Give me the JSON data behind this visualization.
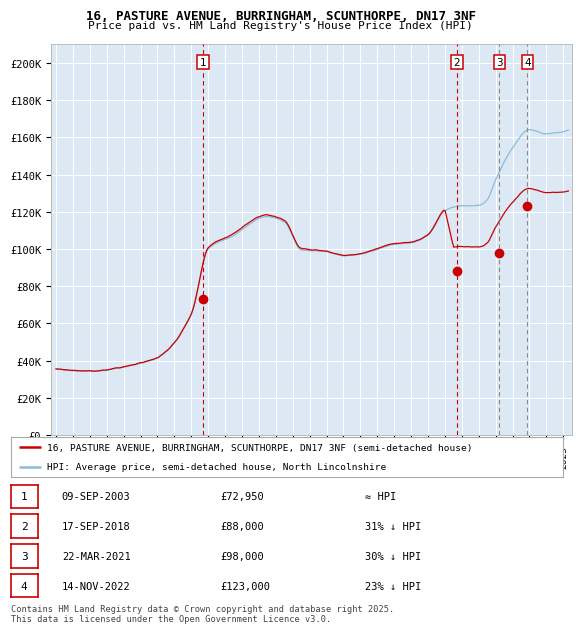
{
  "title1": "16, PASTURE AVENUE, BURRINGHAM, SCUNTHORPE, DN17 3NF",
  "title2": "Price paid vs. HM Land Registry's House Price Index (HPI)",
  "bg_color": "#dce9f5",
  "hpi_color": "#8bbcda",
  "price_color": "#cc0000",
  "ylim": [
    0,
    210000
  ],
  "ytick_values": [
    0,
    20000,
    40000,
    60000,
    80000,
    100000,
    120000,
    140000,
    160000,
    180000,
    200000
  ],
  "ytick_labels": [
    "£0",
    "£20K",
    "£40K",
    "£60K",
    "£80K",
    "£100K",
    "£120K",
    "£140K",
    "£160K",
    "£180K",
    "£200K"
  ],
  "xlim_start": 1994.7,
  "xlim_end": 2025.5,
  "sale_dates": [
    2003.69,
    2018.71,
    2021.22,
    2022.87
  ],
  "sale_prices": [
    72950,
    88000,
    98000,
    123000
  ],
  "sale_labels": [
    "1",
    "2",
    "3",
    "4"
  ],
  "legend_line1": "16, PASTURE AVENUE, BURRINGHAM, SCUNTHORPE, DN17 3NF (semi-detached house)",
  "legend_line2": "HPI: Average price, semi-detached house, North Lincolnshire",
  "table_data": [
    [
      "1",
      "09-SEP-2003",
      "£72,950",
      "≈ HPI"
    ],
    [
      "2",
      "17-SEP-2018",
      "£88,000",
      "31% ↓ HPI"
    ],
    [
      "3",
      "22-MAR-2021",
      "£98,000",
      "30% ↓ HPI"
    ],
    [
      "4",
      "14-NOV-2022",
      "£123,000",
      "23% ↓ HPI"
    ]
  ],
  "footer": "Contains HM Land Registry data © Crown copyright and database right 2025.\nThis data is licensed under the Open Government Licence v3.0.",
  "red_vlines": [
    2003.69,
    2018.71
  ],
  "gray_vlines": [
    2021.22,
    2022.87
  ]
}
